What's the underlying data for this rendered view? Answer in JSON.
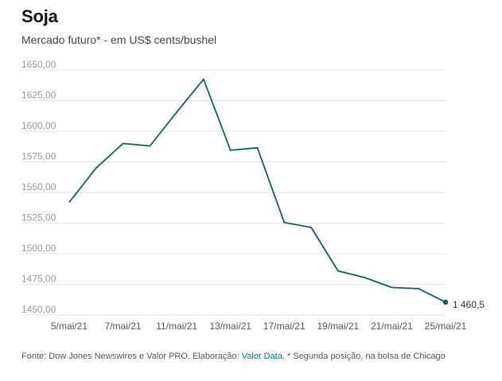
{
  "header": {
    "title": "Soja",
    "subtitle": "Mercado futuro* - em US$ cents/bushel"
  },
  "footer": {
    "prefix": "Fonte: Dow Jones Newswires e Valor PRO. Elaboração: ",
    "link": "Valor Data",
    "suffix": ". * Segunda posição, na bolsa de Chicago"
  },
  "colors": {
    "line": "#0d5f63",
    "grid": "#e3e3e3",
    "link": "#00797a"
  },
  "chart_data": {
    "type": "line",
    "title": "Soja",
    "subtitle": "Mercado futuro* - em US$ cents/bushel",
    "xlabel": "",
    "ylabel": "",
    "ylim": [
      1450,
      1650
    ],
    "yticks": [
      "1650,00",
      "1625,00",
      "1600,00",
      "1575,00",
      "1550,00",
      "1525,00",
      "1500,00",
      "1475,00",
      "1450,00"
    ],
    "ytick_values": [
      1650,
      1625,
      1600,
      1575,
      1550,
      1525,
      1500,
      1475,
      1450
    ],
    "x": [
      "5/mai/21",
      "6/mai/21",
      "7/mai/21",
      "10/mai/21",
      "11/mai/21",
      "12/mai/21",
      "13/mai/21",
      "14/mai/21",
      "17/mai/21",
      "18/mai/21",
      "19/mai/21",
      "20/mai/21",
      "21/mai/21",
      "24/mai/21",
      "25/mai/21"
    ],
    "xticks": [
      "5/mai/21",
      "7/mai/21",
      "11/mai/21",
      "13/mai/21",
      "17/mai/21",
      "19/mai/21",
      "21/mai/21",
      "25/mai/21"
    ],
    "series": [
      {
        "name": "Soja",
        "values": [
          1542,
          1570,
          1590,
          1588,
          1615.5,
          1642.5,
          1584.5,
          1586.5,
          1525.5,
          1521.5,
          1486,
          1480.5,
          1472.5,
          1471.5,
          1460.5
        ]
      }
    ],
    "last_value_label": "1 460,5",
    "grid": true
  }
}
